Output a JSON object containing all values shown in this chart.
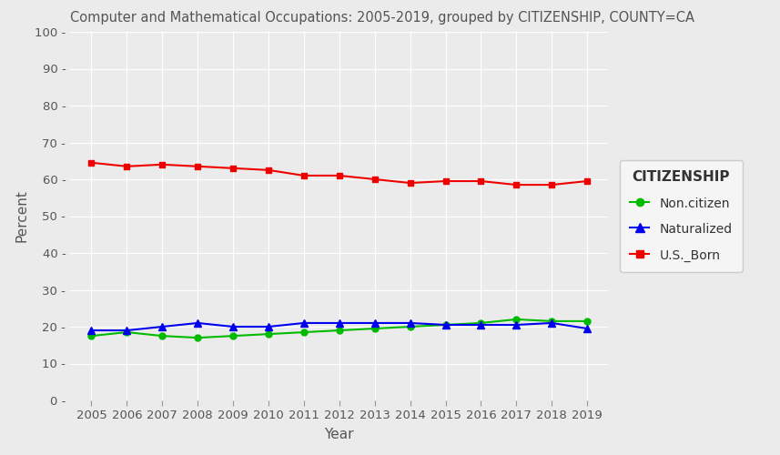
{
  "title": "Computer and Mathematical Occupations: 2005-2019, grouped by CITIZENSHIP, COUNTY=CA",
  "xlabel": "Year",
  "ylabel": "Percent",
  "years": [
    2005,
    2006,
    2007,
    2008,
    2009,
    2010,
    2011,
    2012,
    2013,
    2014,
    2015,
    2016,
    2017,
    2018,
    2019
  ],
  "non_citizen": [
    17.5,
    18.5,
    17.5,
    17.0,
    17.5,
    18.0,
    18.5,
    19.0,
    19.5,
    20.0,
    20.5,
    21.0,
    22.0,
    21.5,
    21.5
  ],
  "naturalized": [
    19.0,
    19.0,
    20.0,
    21.0,
    20.0,
    20.0,
    21.0,
    21.0,
    21.0,
    21.0,
    20.5,
    20.5,
    20.5,
    21.0,
    19.5
  ],
  "us_born": [
    64.5,
    63.5,
    64.0,
    63.5,
    63.0,
    62.5,
    61.0,
    61.0,
    60.0,
    59.0,
    59.5,
    59.5,
    58.5,
    58.5,
    59.5
  ],
  "color_non_citizen": "#00BB00",
  "color_naturalized": "#0000EE",
  "color_us_born": "#EE0000",
  "bg_color": "#EBEBEB",
  "legend_bg": "#F5F5F5",
  "ylim": [
    0,
    100
  ],
  "yticks": [
    0,
    10,
    20,
    30,
    40,
    50,
    60,
    70,
    80,
    90,
    100
  ],
  "legend_title": "CITIZENSHIP",
  "legend_labels": [
    "Non.citizen",
    "Naturalized",
    "U.S._Born"
  ],
  "title_color": "#555555",
  "axis_label_color": "#555555",
  "tick_label_color": "#555555"
}
